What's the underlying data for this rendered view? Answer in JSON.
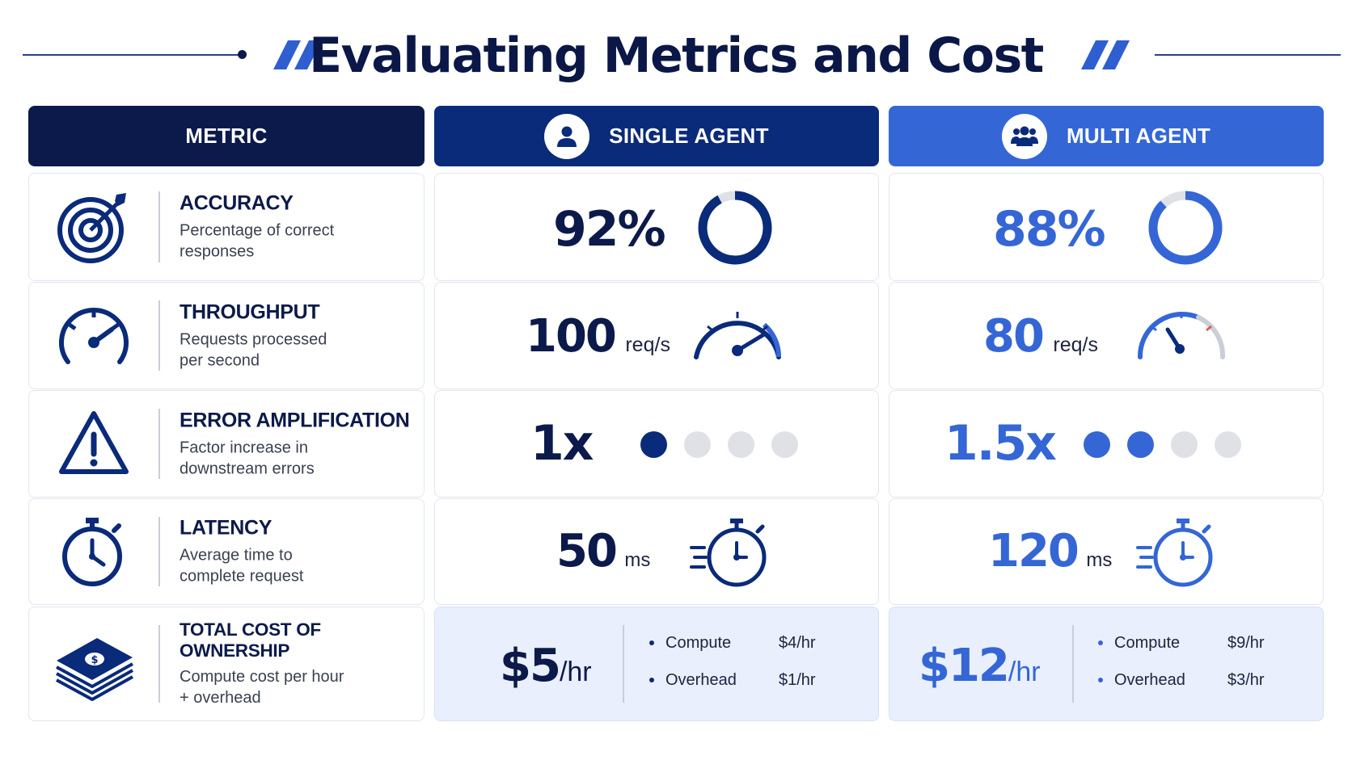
{
  "title": "Evaluating Metrics and Cost",
  "headers": {
    "metric": "METRIC",
    "single": "SINGLE AGENT",
    "multi": "MULTI AGENT"
  },
  "icons": {
    "single": "user-icon",
    "multi": "users-icon",
    "accuracy": "target-icon",
    "throughput": "speedometer-icon",
    "error": "warning-icon",
    "latency": "stopwatch-icon",
    "cost": "money-stack-icon"
  },
  "colors": {
    "navy": "#0b1a4a",
    "single_accent": "#0a2a7a",
    "multi_accent": "#3466d6",
    "inactive": "#dfe1e6"
  },
  "metrics": {
    "accuracy": {
      "title": "ACCURACY",
      "desc_1": "Percentage of correct",
      "desc_2": "responses"
    },
    "throughput": {
      "title": "THROUGHPUT",
      "desc_1": "Requests processed",
      "desc_2": "per second"
    },
    "error": {
      "title": "ERROR AMPLIFICATION",
      "desc_1": "Factor increase in",
      "desc_2": "downstream errors"
    },
    "latency": {
      "title": "LATENCY",
      "desc_1": "Average time to",
      "desc_2": "complete request"
    },
    "cost": {
      "title": "TOTAL COST OF OWNERSHIP",
      "desc_1": "Compute cost per hour",
      "desc_2": "+ overhead"
    }
  },
  "single": {
    "accuracy": {
      "value": "92%",
      "ring_fraction": 0.92
    },
    "throughput": {
      "value": "100",
      "unit": "req/s"
    },
    "error": {
      "value": "1x",
      "active_dots": 1,
      "total_dots": 4
    },
    "latency": {
      "value": "50",
      "unit": "ms"
    },
    "cost": {
      "value": "$5",
      "unit": "/hr",
      "items": [
        {
          "label": "Compute",
          "value": "$4/hr"
        },
        {
          "label": "Overhead",
          "value": "$1/hr"
        }
      ]
    }
  },
  "multi": {
    "accuracy": {
      "value": "88%",
      "ring_fraction": 0.88
    },
    "throughput": {
      "value": "80",
      "unit": "req/s"
    },
    "error": {
      "value": "1.5x",
      "active_dots": 2,
      "total_dots": 4
    },
    "latency": {
      "value": "120",
      "unit": "ms"
    },
    "cost": {
      "value": "$12",
      "unit": "/hr",
      "items": [
        {
          "label": "Compute",
          "value": "$9/hr"
        },
        {
          "label": "Overhead",
          "value": "$3/hr"
        }
      ]
    }
  }
}
